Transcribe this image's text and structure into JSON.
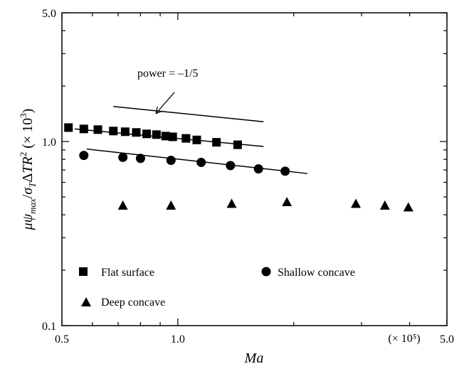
{
  "chart_data": {
    "type": "scatter",
    "x_scale": "log",
    "y_scale": "log",
    "xlim": [
      0.5,
      5.0
    ],
    "ylim": [
      0.1,
      5.0
    ],
    "xlabel": "Ma",
    "ylabel": "μψmax/σTΔTR2 (×103)",
    "x_ticks": [
      {
        "value": 0.5,
        "label": "0.5"
      },
      {
        "value": 1.0,
        "label": "1.0"
      },
      {
        "value": 5.0,
        "label": "5.0"
      }
    ],
    "x_multiplier_label": "(× 10⁵)",
    "y_ticks": [
      {
        "value": 0.1,
        "label": "0.1"
      },
      {
        "value": 1.0,
        "label": "1.0"
      },
      {
        "value": 5.0,
        "label": "5.0"
      }
    ],
    "series": [
      {
        "name": "Flat surface",
        "marker": "square",
        "x": [
          0.52,
          0.57,
          0.62,
          0.68,
          0.73,
          0.78,
          0.83,
          0.88,
          0.93,
          0.97,
          1.05,
          1.12,
          1.26,
          1.43
        ],
        "y": [
          1.19,
          1.17,
          1.16,
          1.14,
          1.13,
          1.12,
          1.1,
          1.09,
          1.07,
          1.06,
          1.04,
          1.02,
          0.99,
          0.96
        ],
        "fit": {
          "x": [
            0.54,
            1.67
          ],
          "y": [
            1.17,
            0.94
          ]
        }
      },
      {
        "name": "Shallow concave",
        "marker": "circle",
        "x": [
          0.57,
          0.72,
          0.8,
          0.96,
          1.15,
          1.37,
          1.62,
          1.9
        ],
        "y": [
          0.84,
          0.82,
          0.81,
          0.79,
          0.77,
          0.74,
          0.71,
          0.69
        ],
        "fit": {
          "x": [
            0.58,
            2.17
          ],
          "y": [
            0.91,
            0.67
          ]
        }
      },
      {
        "name": "Deep concave",
        "marker": "triangle",
        "x": [
          0.72,
          0.96,
          1.38,
          1.92,
          2.9,
          3.45,
          3.97
        ],
        "y": [
          0.45,
          0.45,
          0.46,
          0.47,
          0.46,
          0.45,
          0.44
        ]
      }
    ],
    "reference_line": {
      "x": [
        0.68,
        1.67
      ],
      "y": [
        1.55,
        1.28
      ]
    },
    "annotation": {
      "text": "power = –1/5",
      "arrow_from": [
        0.98,
        1.85
      ],
      "arrow_to": [
        0.88,
        1.43
      ]
    },
    "legend": {
      "placement": "bottom-left"
    },
    "grid": false
  }
}
